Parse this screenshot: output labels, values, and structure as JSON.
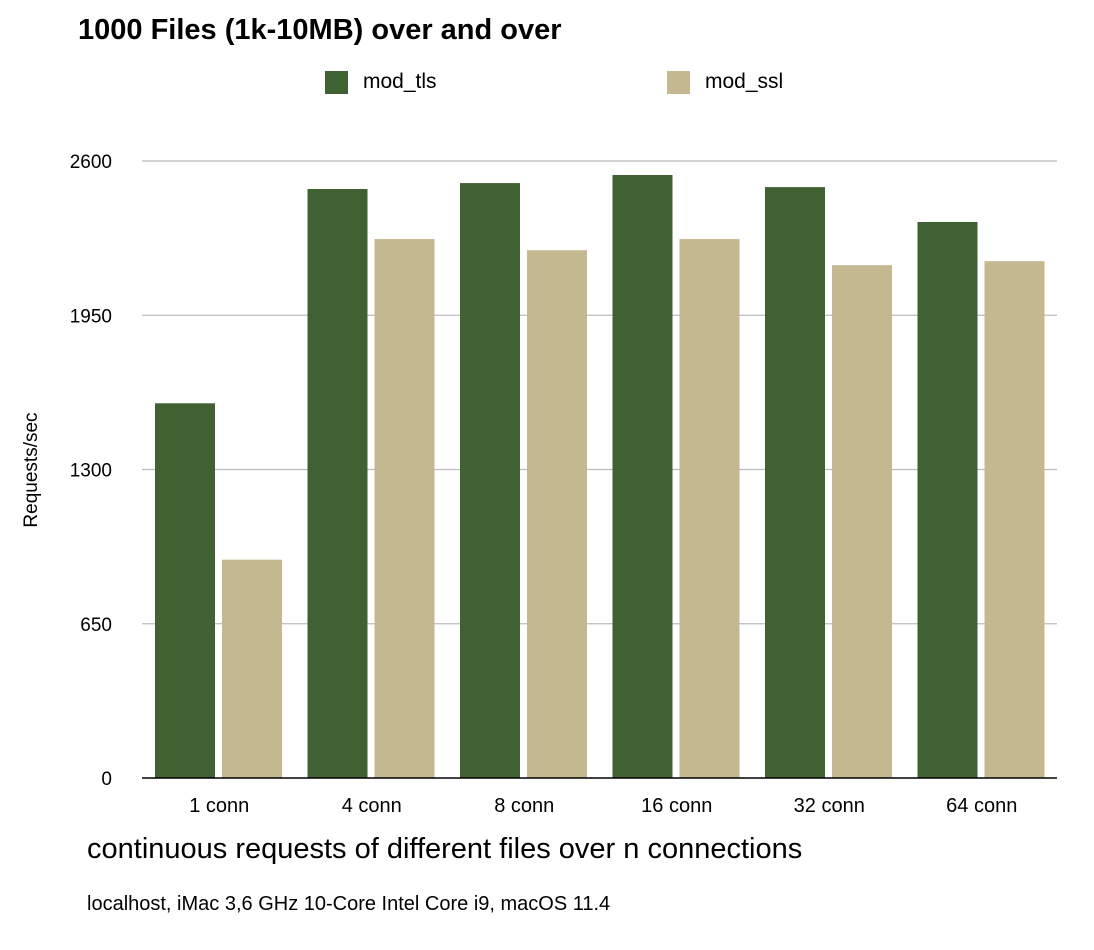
{
  "chart_data": {
    "type": "bar",
    "title": "1000 Files (1k-10MB) over and over",
    "xlabel": "continuous requests of different files over n connections",
    "ylabel": "Requests/sec",
    "note": "localhost, iMac 3,6 GHz 10-Core Intel Core i9, macOS 11.4",
    "categories": [
      "1 conn",
      "4 conn",
      "8 conn",
      "16 conn",
      "32 conn",
      "64 conn"
    ],
    "series": [
      {
        "name": "mod_tls",
        "color": "#406132",
        "values": [
          1579,
          2482,
          2507,
          2541,
          2490,
          2343
        ]
      },
      {
        "name": "mod_ssl",
        "color": "#c4b890",
        "values": [
          920,
          2271,
          2224,
          2271,
          2161,
          2178
        ]
      }
    ],
    "yticks": [
      "0",
      "650",
      "1300",
      "1950",
      "2600"
    ],
    "ylim": [
      0,
      2600
    ],
    "grid": true,
    "legend": "top"
  }
}
